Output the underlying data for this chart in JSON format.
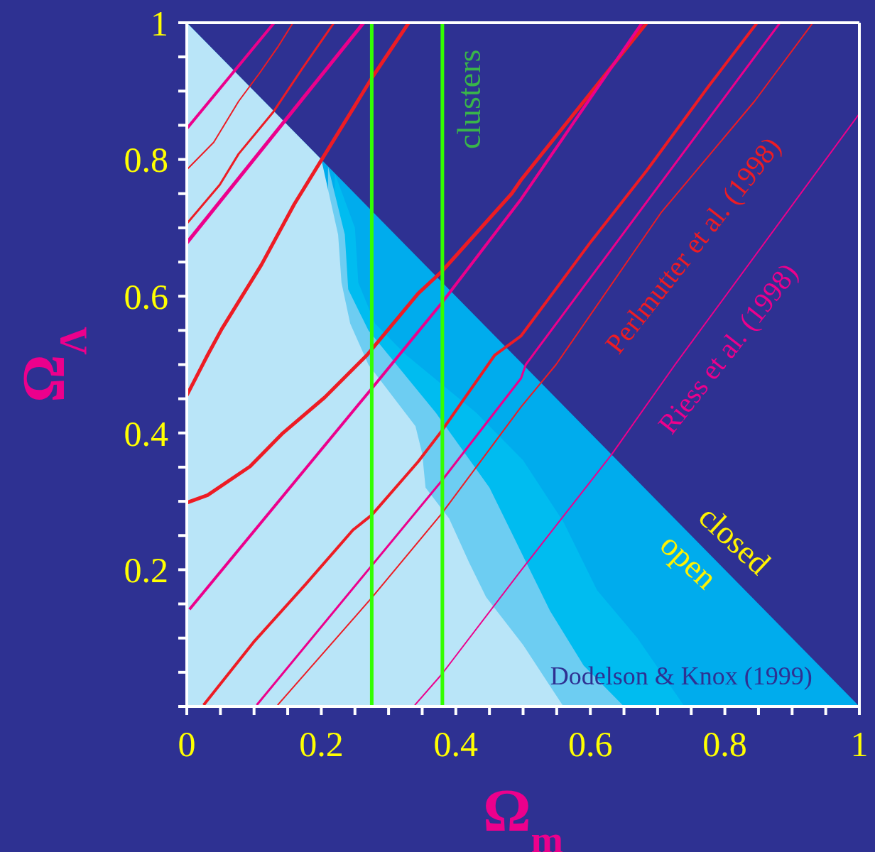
{
  "chart_data": {
    "type": "line",
    "xlabel": "Ω$_{m}$",
    "ylabel": "Ω$_{Λ}$",
    "xlim": [
      0,
      1
    ],
    "ylim": [
      0,
      1
    ],
    "xticks": [
      0,
      {
        "value": 0.05,
        "label": null
      },
      {
        "value": 0.1,
        "label": null
      },
      {
        "value": 0.15,
        "label": null
      },
      0.2,
      {
        "value": 0.25,
        "label": null
      },
      {
        "value": 0.3,
        "label": null
      },
      {
        "value": 0.35,
        "label": null
      },
      0.4,
      {
        "value": 0.45,
        "label": null
      },
      {
        "value": 0.5,
        "label": null
      },
      {
        "value": 0.55,
        "label": null
      },
      0.6,
      {
        "value": 0.65,
        "label": null
      },
      {
        "value": 0.7,
        "label": null
      },
      {
        "value": 0.75,
        "label": null
      },
      0.8,
      {
        "value": 0.85,
        "label": null
      },
      {
        "value": 0.9,
        "label": null
      },
      {
        "value": 0.95,
        "label": null
      },
      1
    ],
    "yticks": [
      {
        "value": 0,
        "label": null
      },
      {
        "value": 0.05,
        "label": null
      },
      {
        "value": 0.1,
        "label": null
      },
      {
        "value": 0.15,
        "label": null
      },
      0.2,
      {
        "value": 0.25,
        "label": null
      },
      {
        "value": 0.3,
        "label": null
      },
      {
        "value": 0.35,
        "label": null
      },
      0.4,
      {
        "value": 0.45,
        "label": null
      },
      {
        "value": 0.5,
        "label": null
      },
      {
        "value": 0.55,
        "label": null
      },
      0.6,
      {
        "value": 0.65,
        "label": null
      },
      {
        "value": 0.7,
        "label": null
      },
      {
        "value": 0.75,
        "label": null
      },
      0.8,
      {
        "value": 0.85,
        "label": null
      },
      {
        "value": 0.9,
        "label": null
      },
      {
        "value": 0.95,
        "label": null
      },
      1
    ],
    "series": [
      {
        "type": "area",
        "color": "#00aced",
        "x": [
          0,
          1
        ],
        "values": [
          1,
          0
        ]
      },
      {
        "type": "area",
        "color": "#00bcf0",
        "x": [
          0.22,
          0.25,
          0.255,
          0.28,
          0.325,
          0.43,
          0.5,
          0.56,
          0.61,
          0.67,
          0.74
        ],
        "values": [
          0.78,
          0.7,
          0.62,
          0.56,
          0.515,
          0.43,
          0.36,
          0.27,
          0.17,
          0.1,
          0
        ]
      },
      {
        "type": "area",
        "color": "#6dcdf2",
        "x": [
          0.21,
          0.235,
          0.24,
          0.27,
          0.37,
          0.45,
          0.5,
          0.54,
          0.59,
          0.65
        ],
        "values": [
          0.79,
          0.69,
          0.61,
          0.55,
          0.43,
          0.32,
          0.22,
          0.14,
          0.06,
          0
        ]
      },
      {
        "type": "area",
        "color": "#b9e5f8",
        "x": [
          0,
          0.2,
          0.225,
          0.23,
          0.243,
          0.27,
          0.34,
          0.35,
          0.355,
          0.39,
          0.42,
          0.445,
          0.5,
          0.56
        ],
        "values": [
          1,
          0.8,
          0.69,
          0.62,
          0.56,
          0.5,
          0.41,
          0.37,
          0.32,
          0.275,
          0.21,
          0.16,
          0.09,
          0
        ]
      },
      {
        "color": "#ec008c",
        "x": [
          0,
          0.13
        ],
        "values": [
          0.845,
          1
        ]
      },
      {
        "color": "#ed1c24",
        "x": [
          0,
          0.04,
          0.077,
          0.108,
          0.135,
          0.158
        ],
        "values": [
          0.785,
          0.825,
          0.885,
          0.926,
          0.964,
          1
        ]
      },
      {
        "color": "#ed1c24",
        "x": [
          0,
          0.049,
          0.077,
          0.129,
          0.171,
          0.219
        ],
        "values": [
          0.706,
          0.763,
          0.808,
          0.87,
          0.932,
          1
        ]
      },
      {
        "color": "#ec008c",
        "x": [
          0,
          0.263
        ],
        "values": [
          0.678,
          1
        ]
      },
      {
        "color": "#ed1c24",
        "x": [
          0,
          0.031,
          0.052,
          0.111,
          0.16,
          0.202,
          0.247,
          0.275,
          0.33
        ],
        "values": [
          0.455,
          0.514,
          0.552,
          0.646,
          0.735,
          0.802,
          0.874,
          0.919,
          1
        ]
      },
      {
        "color": "#ed1c24",
        "x": [
          0,
          0.031,
          0.094,
          0.143,
          0.205,
          0.268,
          0.344,
          0.379,
          0.483,
          0.497,
          0.684
        ],
        "values": [
          0.298,
          0.309,
          0.351,
          0.4,
          0.452,
          0.514,
          0.604,
          0.636,
          0.75,
          0.77,
          1
        ]
      },
      {
        "color": "#ec008c",
        "x": [
          0.004,
          0.275,
          0.379,
          0.497,
          0.677
        ],
        "values": [
          0.142,
          0.465,
          0.59,
          0.742,
          1
        ]
      },
      {
        "color": "#ed1c24",
        "x": [
          0.025,
          0.101,
          0.177,
          0.247,
          0.275,
          0.344,
          0.379,
          0.458,
          0.497,
          0.601,
          0.684,
          0.775,
          0.848
        ],
        "values": [
          0.002,
          0.096,
          0.179,
          0.258,
          0.28,
          0.358,
          0.403,
          0.514,
          0.542,
          0.68,
          0.784,
          0.906,
          1
        ]
      },
      {
        "color": "#ec008c",
        "x": [
          0.104,
          0.275,
          0.379,
          0.497,
          0.504,
          0.882
        ],
        "values": [
          0.002,
          0.206,
          0.33,
          0.48,
          0.5,
          1
        ]
      },
      {
        "color": "#ed1c24",
        "x": [
          0.135,
          0.275,
          0.379,
          0.497,
          0.549,
          0.705,
          0.844,
          0.931
        ],
        "values": [
          0.002,
          0.159,
          0.282,
          0.438,
          0.5,
          0.722,
          0.885,
          1
        ]
      },
      {
        "color": "#ec008c",
        "x": [
          0.339,
          0.379,
          0.497,
          0.632,
          0.726,
          1
        ],
        "values": [
          0.002,
          0.047,
          0.199,
          0.369,
          0.5,
          0.867
        ]
      }
    ],
    "ref_lines": [
      {
        "axis": "x",
        "value": 0.275,
        "color": "#33ff00"
      },
      {
        "axis": "x",
        "value": 0.38,
        "color": "#33ff00"
      }
    ],
    "annotations": [
      "clusters",
      "Perlmutter et al. (1998)",
      "Riess et al. (1998)",
      "closed",
      "open",
      "Dodelson & Knox (1999)"
    ]
  }
}
